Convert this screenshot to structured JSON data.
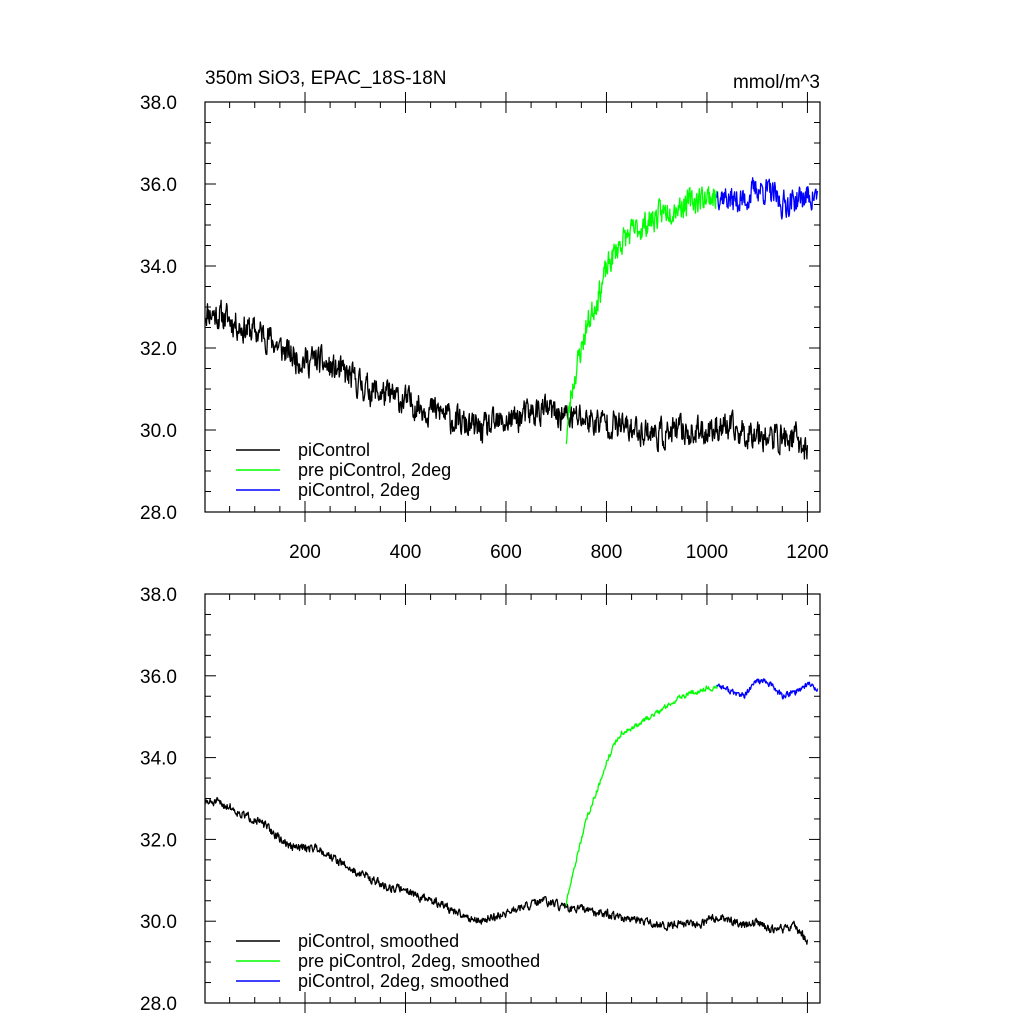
{
  "figure": {
    "title_left": "350m SiO3, EPAC_18S-18N",
    "title_right": "mmol/m^3"
  },
  "chart_data": [
    {
      "type": "line",
      "title": "350m SiO3, EPAC_18S-18N",
      "units": "mmol/m^3",
      "xlim": [
        1,
        1225
      ],
      "ylim": [
        28.0,
        38.0
      ],
      "y_ticks": [
        "28.0",
        "30.0",
        "32.0",
        "34.0",
        "36.0",
        "38.0"
      ],
      "x_ticks": [
        "200",
        "400",
        "600",
        "800",
        "1000",
        "1200"
      ],
      "grid": false,
      "legend_position": "bottom-left",
      "series": [
        {
          "name": "piControl",
          "color": "#000000",
          "x": [
            1,
            25,
            50,
            75,
            100,
            125,
            150,
            175,
            200,
            225,
            250,
            275,
            300,
            325,
            350,
            375,
            400,
            425,
            450,
            475,
            500,
            525,
            550,
            575,
            600,
            625,
            650,
            675,
            700,
            725,
            750,
            775,
            800,
            825,
            850,
            875,
            900,
            925,
            950,
            975,
            1000,
            1025,
            1050,
            1075,
            1100,
            1125,
            1150,
            1175,
            1200
          ],
          "y": [
            32.9,
            32.8,
            32.7,
            32.5,
            32.4,
            32.3,
            32.0,
            31.8,
            31.7,
            31.7,
            31.5,
            31.4,
            31.2,
            31.0,
            30.9,
            30.8,
            30.7,
            30.6,
            30.5,
            30.4,
            30.2,
            30.1,
            30.0,
            30.1,
            30.2,
            30.3,
            30.4,
            30.5,
            30.4,
            30.3,
            30.3,
            30.2,
            30.2,
            30.1,
            30.0,
            30.0,
            29.9,
            29.9,
            30.0,
            29.9,
            30.0,
            30.1,
            30.0,
            29.9,
            30.0,
            29.8,
            29.8,
            29.8,
            29.5
          ],
          "noise": 0.55,
          "noise_seed": 11
        },
        {
          "name": "pre piControl, 2deg",
          "color": "#00ff00",
          "x": [
            720,
            730,
            740,
            750,
            760,
            775,
            790,
            800,
            815,
            830,
            850,
            875,
            900,
            925,
            950,
            975,
            1000,
            1020
          ],
          "y": [
            29.8,
            30.9,
            31.5,
            32.0,
            32.5,
            33.0,
            33.5,
            33.9,
            34.3,
            34.6,
            34.8,
            35.0,
            35.2,
            35.4,
            35.5,
            35.6,
            35.7,
            35.7
          ],
          "noise": 0.5,
          "noise_seed": 23
        },
        {
          "name": "piControl, 2deg",
          "color": "#0000ff",
          "x": [
            1020,
            1050,
            1075,
            1100,
            1125,
            1150,
            1175,
            1200,
            1220
          ],
          "y": [
            35.8,
            35.6,
            35.6,
            35.9,
            35.8,
            35.5,
            35.6,
            35.7,
            35.7
          ],
          "noise": 0.5,
          "noise_seed": 37
        }
      ]
    },
    {
      "type": "line",
      "xlim": [
        1,
        1225
      ],
      "ylim": [
        28.0,
        38.0
      ],
      "y_ticks": [
        "28.0",
        "30.0",
        "32.0",
        "34.0",
        "36.0",
        "38.0"
      ],
      "grid": false,
      "legend_position": "bottom-left",
      "series": [
        {
          "name": "piControl, smoothed",
          "color": "#000000",
          "x": [
            1,
            25,
            50,
            75,
            100,
            125,
            150,
            175,
            200,
            225,
            250,
            275,
            300,
            325,
            350,
            375,
            400,
            425,
            450,
            475,
            500,
            525,
            550,
            575,
            600,
            625,
            650,
            675,
            700,
            725,
            750,
            775,
            800,
            825,
            850,
            875,
            900,
            925,
            950,
            975,
            1000,
            1025,
            1050,
            1075,
            1100,
            1125,
            1150,
            1175,
            1200
          ],
          "y": [
            32.9,
            32.9,
            32.8,
            32.6,
            32.5,
            32.3,
            32.0,
            31.8,
            31.8,
            31.8,
            31.6,
            31.4,
            31.2,
            31.1,
            30.9,
            30.8,
            30.8,
            30.6,
            30.5,
            30.4,
            30.2,
            30.1,
            30.0,
            30.1,
            30.2,
            30.3,
            30.4,
            30.5,
            30.4,
            30.3,
            30.3,
            30.2,
            30.2,
            30.1,
            30.0,
            30.0,
            29.9,
            29.9,
            30.0,
            29.9,
            30.0,
            30.1,
            30.0,
            29.9,
            30.0,
            29.8,
            29.8,
            29.9,
            29.5
          ],
          "noise": 0.16,
          "noise_seed": 51
        },
        {
          "name": "pre piControl, 2deg, smoothed",
          "color": "#00ff00",
          "x": [
            720,
            730,
            740,
            750,
            760,
            775,
            790,
            800,
            815,
            830,
            850,
            875,
            900,
            925,
            950,
            975,
            1000,
            1020
          ],
          "y": [
            30.4,
            31.0,
            31.5,
            32.0,
            32.5,
            33.0,
            33.5,
            33.9,
            34.3,
            34.6,
            34.7,
            34.9,
            35.1,
            35.3,
            35.5,
            35.6,
            35.7,
            35.7
          ],
          "noise": 0.1,
          "noise_seed": 63
        },
        {
          "name": "piControl, 2deg, smoothed",
          "color": "#0000ff",
          "x": [
            1020,
            1050,
            1075,
            1100,
            1125,
            1150,
            1175,
            1200,
            1220
          ],
          "y": [
            35.8,
            35.6,
            35.5,
            35.9,
            35.8,
            35.5,
            35.6,
            35.8,
            35.7
          ],
          "noise": 0.12,
          "noise_seed": 77
        }
      ]
    }
  ]
}
